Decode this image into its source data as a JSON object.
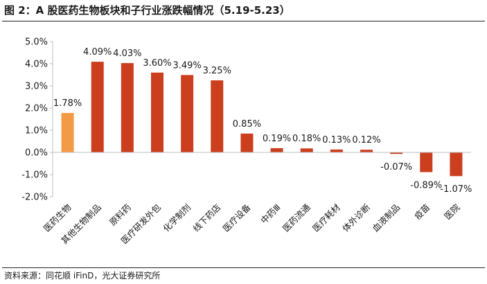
{
  "title": "图 2：A 股医药生物板块和子行业涨跌幅情况（5.19-5.23）",
  "source": "资料来源：同花顺 iFinD，光大证券研究所",
  "colors": {
    "highlight": "#f39a46",
    "bar": "#cc3f1e",
    "axis": "#bdbdbd"
  },
  "chart_data": {
    "type": "bar",
    "title": "图 2：A 股医药生物板块和子行业涨跌幅情况（5.19-5.23）",
    "categories": [
      "医药生物",
      "其他生物制品",
      "原料药",
      "医疗研发外包",
      "化学制剂",
      "线下药店",
      "医疗设备",
      "中药Ⅲ",
      "医药流通",
      "医疗耗材",
      "体外诊断",
      "血液制品",
      "疫苗",
      "医院"
    ],
    "values": [
      1.78,
      4.09,
      4.03,
      3.6,
      3.49,
      3.25,
      0.85,
      0.19,
      0.18,
      0.13,
      0.12,
      -0.07,
      -0.89,
      -1.07
    ],
    "data_labels": [
      "1.78%",
      "4.09%",
      "4.03%",
      "3.60%",
      "3.49%",
      "3.25%",
      "0.85%",
      "0.19%",
      "0.18%",
      "0.13%",
      "0.12%",
      "-0.07%",
      "-0.89%",
      "-1.07%"
    ],
    "ylim": [
      -2.0,
      5.0
    ],
    "yticks": [
      5.0,
      4.0,
      3.0,
      2.0,
      1.0,
      0.0,
      -1.0,
      -2.0
    ],
    "ytick_labels": [
      "5.0%",
      "4.0%",
      "3.0%",
      "2.0%",
      "1.0%",
      "0.0%",
      "-1.0%",
      "-2.0%"
    ],
    "xlabel": "",
    "ylabel": "",
    "grid": false,
    "legend": "none"
  }
}
